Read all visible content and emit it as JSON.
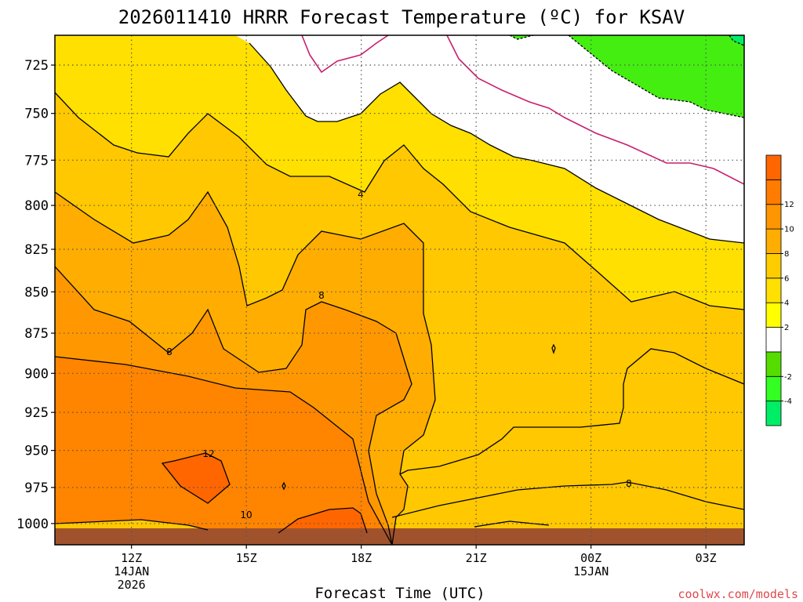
{
  "chart_data": {
    "type": "heatmap",
    "title": "2026011410 HRRR Forecast Temperature (ºC) for KSAV",
    "xlabel": "Forecast Time (UTC)",
    "ylabel": "",
    "x_ticks": [
      {
        "hour": 12,
        "label": "12Z",
        "sub": [
          "14JAN",
          "2026"
        ]
      },
      {
        "hour": 15,
        "label": "15Z",
        "sub": []
      },
      {
        "hour": 18,
        "label": "18Z",
        "sub": []
      },
      {
        "hour": 21,
        "label": "21Z",
        "sub": []
      },
      {
        "hour": 24,
        "label": "00Z",
        "sub": [
          "15JAN"
        ]
      },
      {
        "hour": 27,
        "label": "03Z",
        "sub": []
      }
    ],
    "xlim": [
      10,
      28
    ],
    "y_ticks": [
      725,
      750,
      775,
      800,
      825,
      850,
      875,
      900,
      925,
      950,
      975,
      1000
    ],
    "ylim": [
      710,
      1015
    ],
    "y_scale": "log pressure (hPa), inverted",
    "grid": true,
    "colorbar": {
      "levels": [
        -6,
        -4,
        -2,
        0,
        2,
        4,
        6,
        8,
        10,
        12,
        14
      ],
      "tick_labels": [
        "-4",
        "-2",
        "2",
        "4",
        "6",
        "8",
        "10",
        "12"
      ],
      "colors": [
        "#00ee66",
        "#33ff22",
        "#55dd00",
        "#ffffff",
        "#ffff00",
        "#ffe000",
        "#ffcc00",
        "#ffad00",
        "#ff9500",
        "#ff7c00",
        "#ff6600"
      ],
      "placement": "right"
    },
    "contour_labels": [
      {
        "value": "4",
        "hour": 18.0,
        "p": 800
      },
      {
        "value": "8",
        "hour": 13.0,
        "p": 890
      },
      {
        "value": "8",
        "hour": 16.9,
        "p": 860
      },
      {
        "value": "8",
        "hour": 25.0,
        "p": 976
      },
      {
        "value": "12",
        "hour": 13.9,
        "p": 965
      },
      {
        "value": "10",
        "hour": 14.9,
        "p": 996
      }
    ],
    "credit": "coolwx.com/models"
  }
}
